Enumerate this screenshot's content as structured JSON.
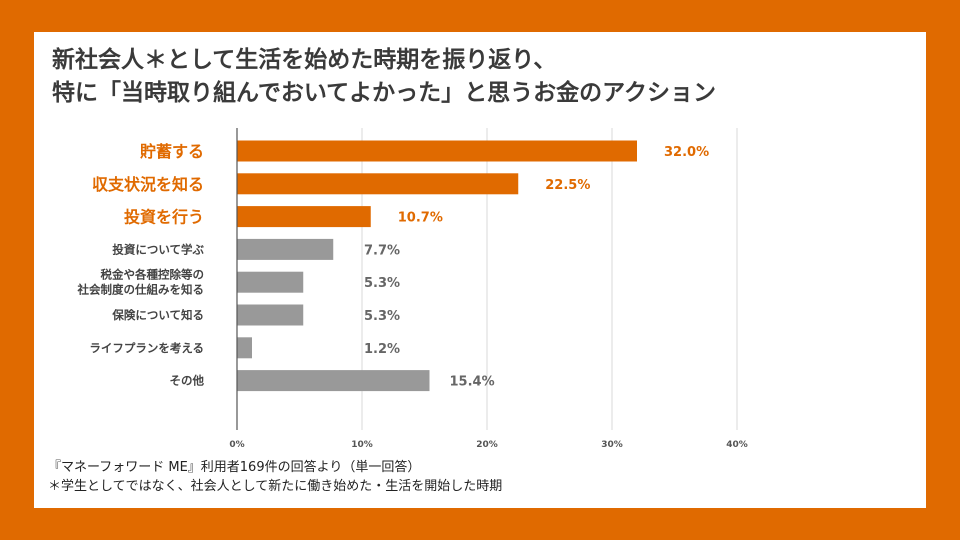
{
  "title": {
    "line1": "新社会人＊として生活を始めた時期を振り返り、",
    "line2": "特に「当時取り組んでおいてよかった」と思うお金のアクション"
  },
  "colors": {
    "background": "#e06a00",
    "highlight": "#e06a00",
    "other": "#999999",
    "grid": "#d9d9d9",
    "axis": "#555555"
  },
  "chart_data": {
    "type": "bar",
    "orientation": "horizontal",
    "categories": [
      "貯蓄する",
      "収支状況を知る",
      "投資を行う",
      "投資について学ぶ",
      "税金や各種控除等の\n社会制度の仕組みを知る",
      "保険について知る",
      "ライフプランを考える",
      "その他"
    ],
    "values": [
      32.0,
      22.5,
      10.7,
      7.7,
      5.3,
      5.3,
      1.2,
      15.4
    ],
    "value_labels": [
      "32.0%",
      "22.5%",
      "10.7%",
      "7.7%",
      "5.3%",
      "5.3%",
      "1.2%",
      "15.4%"
    ],
    "highlighted": [
      true,
      true,
      true,
      false,
      false,
      false,
      false,
      false
    ],
    "xlim": [
      0,
      40
    ],
    "xticks": [
      0,
      10,
      20,
      30,
      40
    ],
    "xtick_labels": [
      "0%",
      "10%",
      "20%",
      "30%",
      "40%"
    ],
    "grid": true,
    "legend": "none"
  },
  "footnotes": {
    "source": "『マネーフォワード ME』利用者169件の回答より（単一回答）",
    "definition": "＊学生としてではなく、社会人として新たに働き始めた・生活を開始した時期"
  }
}
